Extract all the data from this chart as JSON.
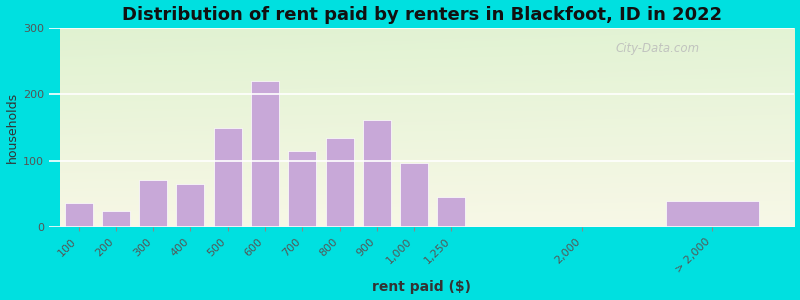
{
  "title": "Distribution of rent paid by renters in Blackfoot, ID in 2022",
  "xlabel": "rent paid ($)",
  "ylabel": "households",
  "background_outer": "#00e0e0",
  "bar_color": "#c8a8d8",
  "bar_edge_color": "#ffffff",
  "categories": [
    "100",
    "200",
    "300",
    "400",
    "500",
    "600",
    "700",
    "800",
    "900",
    "1,000",
    "1,250",
    "2,000",
    "> 2,000"
  ],
  "values": [
    37,
    24,
    72,
    65,
    150,
    220,
    115,
    135,
    162,
    97,
    45,
    0,
    40
  ],
  "ylim": [
    0,
    300
  ],
  "yticks": [
    0,
    100,
    200,
    300
  ],
  "watermark": "City-Data.com",
  "title_fontsize": 13,
  "axis_label_fontsize": 10,
  "tick_fontsize": 8
}
